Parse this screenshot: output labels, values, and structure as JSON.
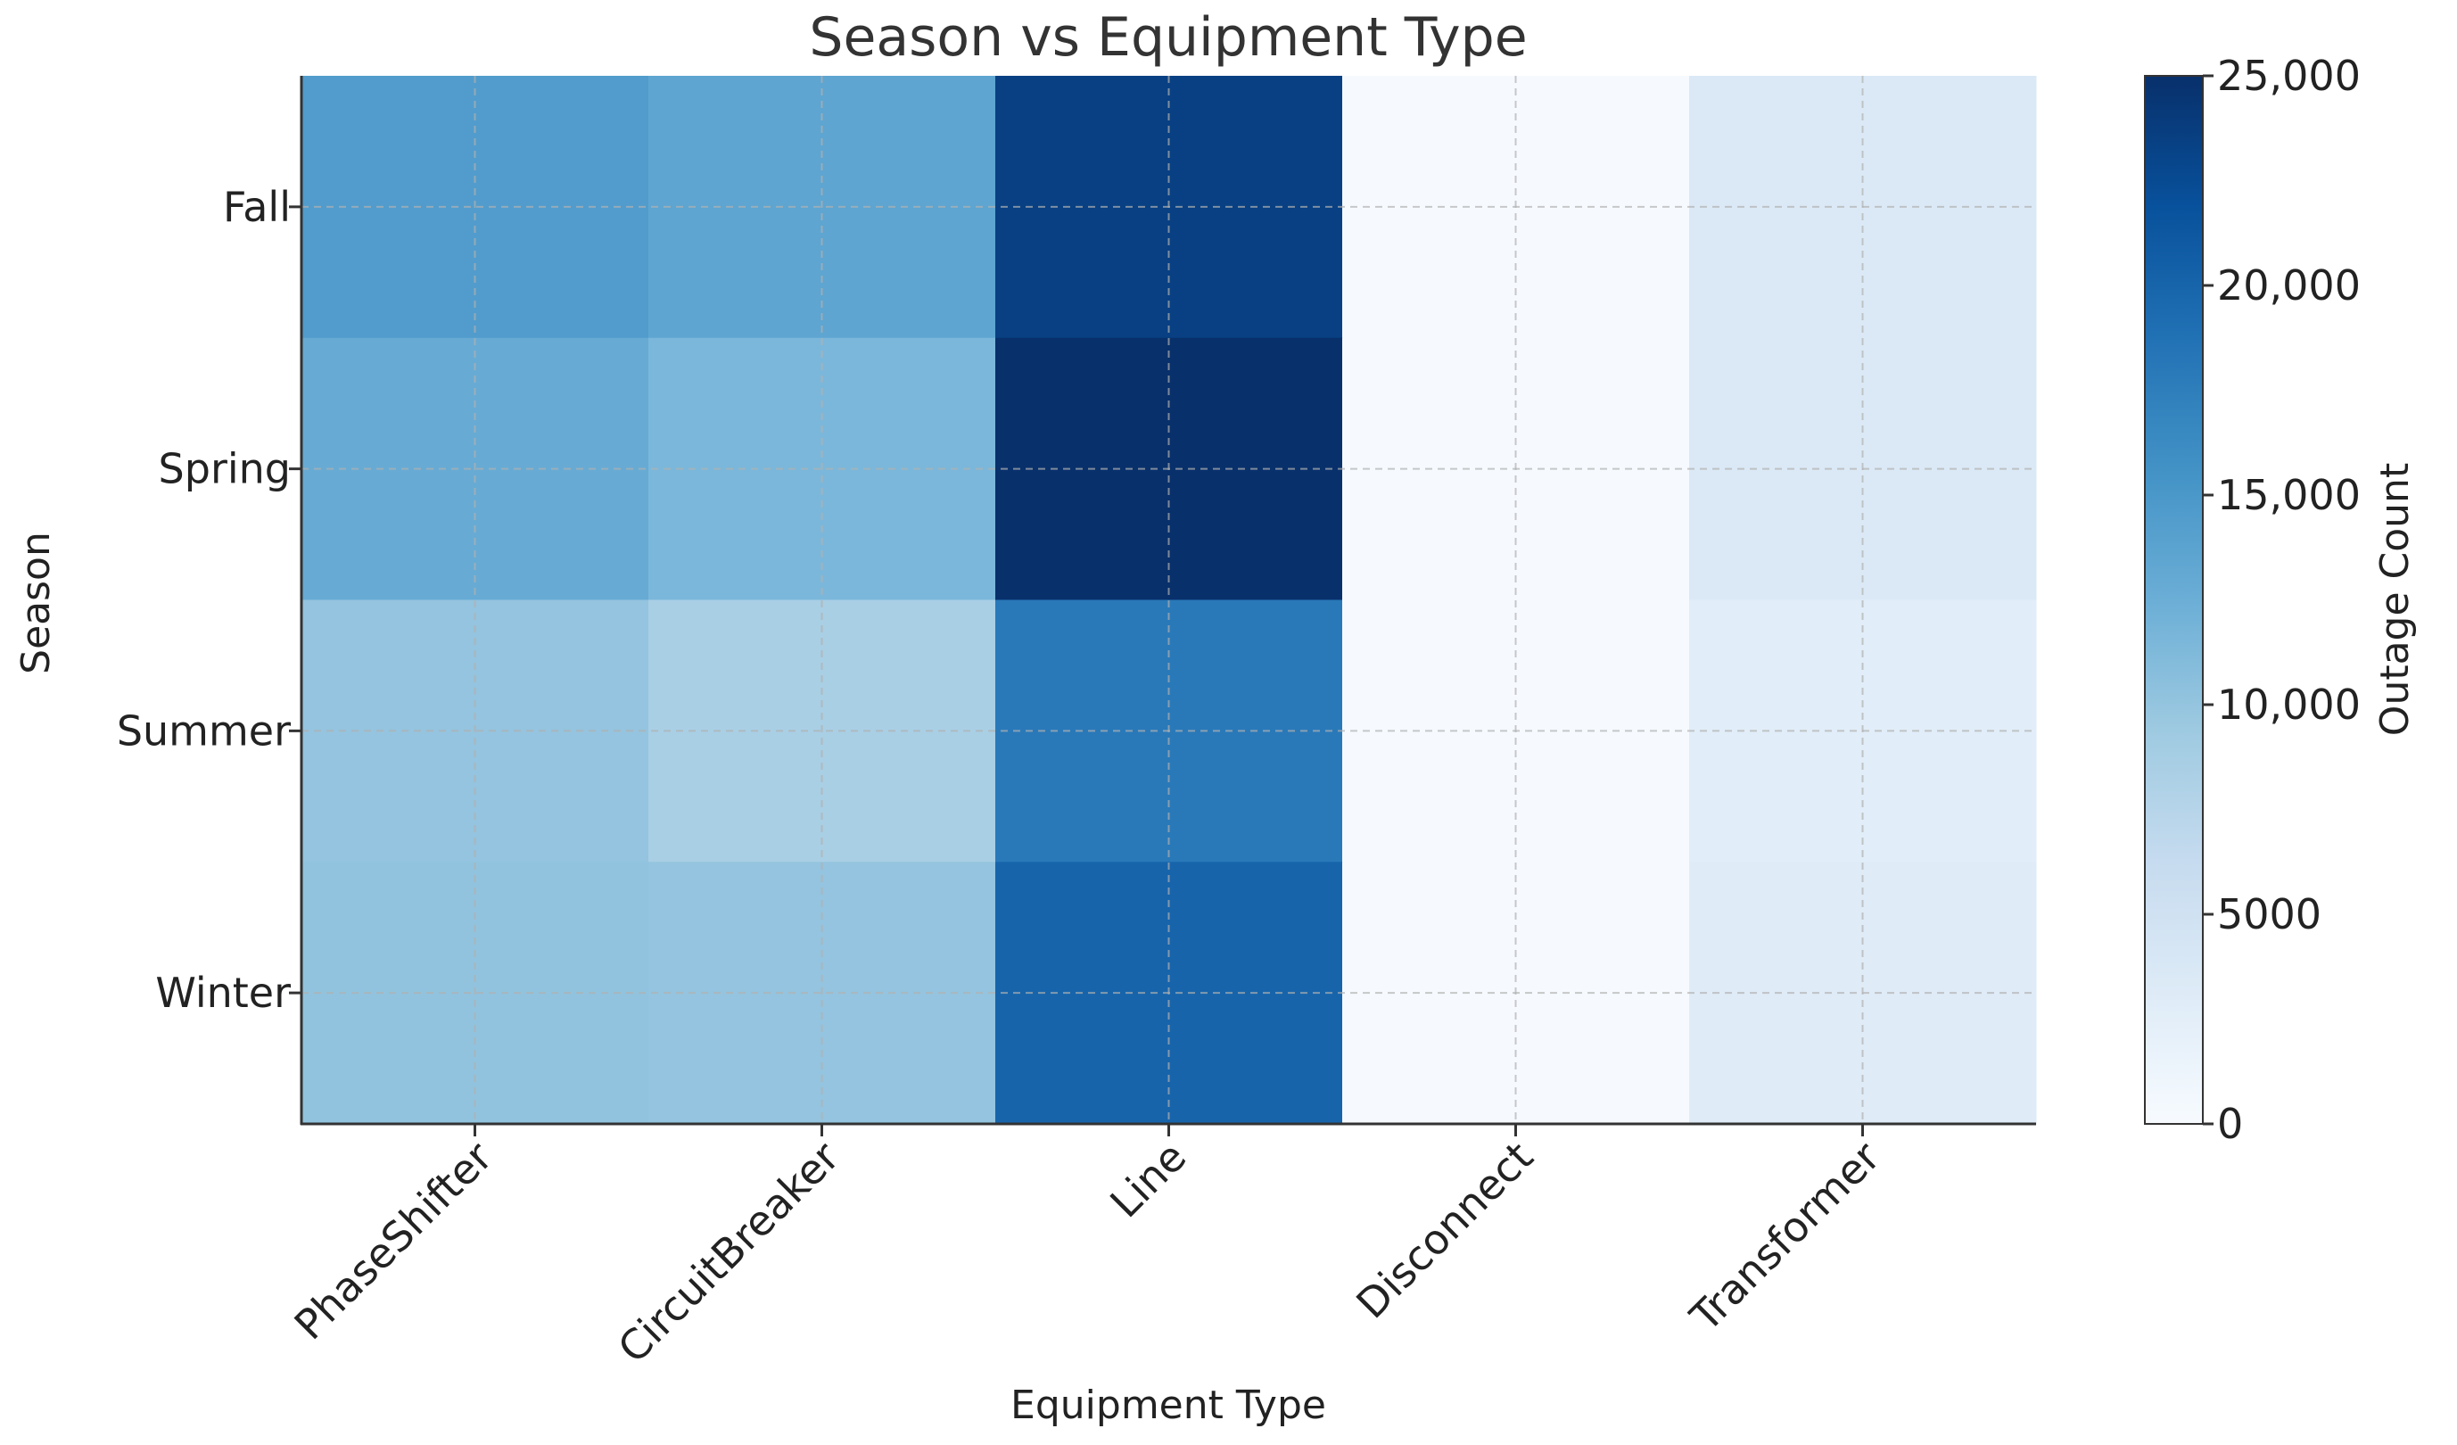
{
  "chart_data": {
    "type": "heatmap",
    "title": "Season vs Equipment Type",
    "xlabel": "Equipment Type",
    "ylabel": "Season",
    "x_categories": [
      "PhaseShifter",
      "CircuitBreaker",
      "Line",
      "Disconnect",
      "Transformer"
    ],
    "y_categories": [
      "Fall",
      "Spring",
      "Summer",
      "Winter"
    ],
    "values": [
      [
        14500,
        13500,
        23500,
        100,
        3500
      ],
      [
        12800,
        11500,
        25000,
        100,
        3500
      ],
      [
        10000,
        8500,
        18000,
        100,
        2800
      ],
      [
        10200,
        10000,
        20000,
        100,
        3000
      ]
    ],
    "colorbar": {
      "label": "Outage Count",
      "min": 0,
      "max": 25000,
      "ticks": [
        0,
        5000,
        10000,
        15000,
        20000,
        25000
      ],
      "tick_labels": [
        "0",
        "5000",
        "10,000",
        "15,000",
        "20,000",
        "25,000"
      ]
    },
    "colormap": "Blues",
    "grid": true,
    "colors": {
      "low": "#f7fbff",
      "mid": "#6baed6",
      "high": "#08306b"
    }
  }
}
